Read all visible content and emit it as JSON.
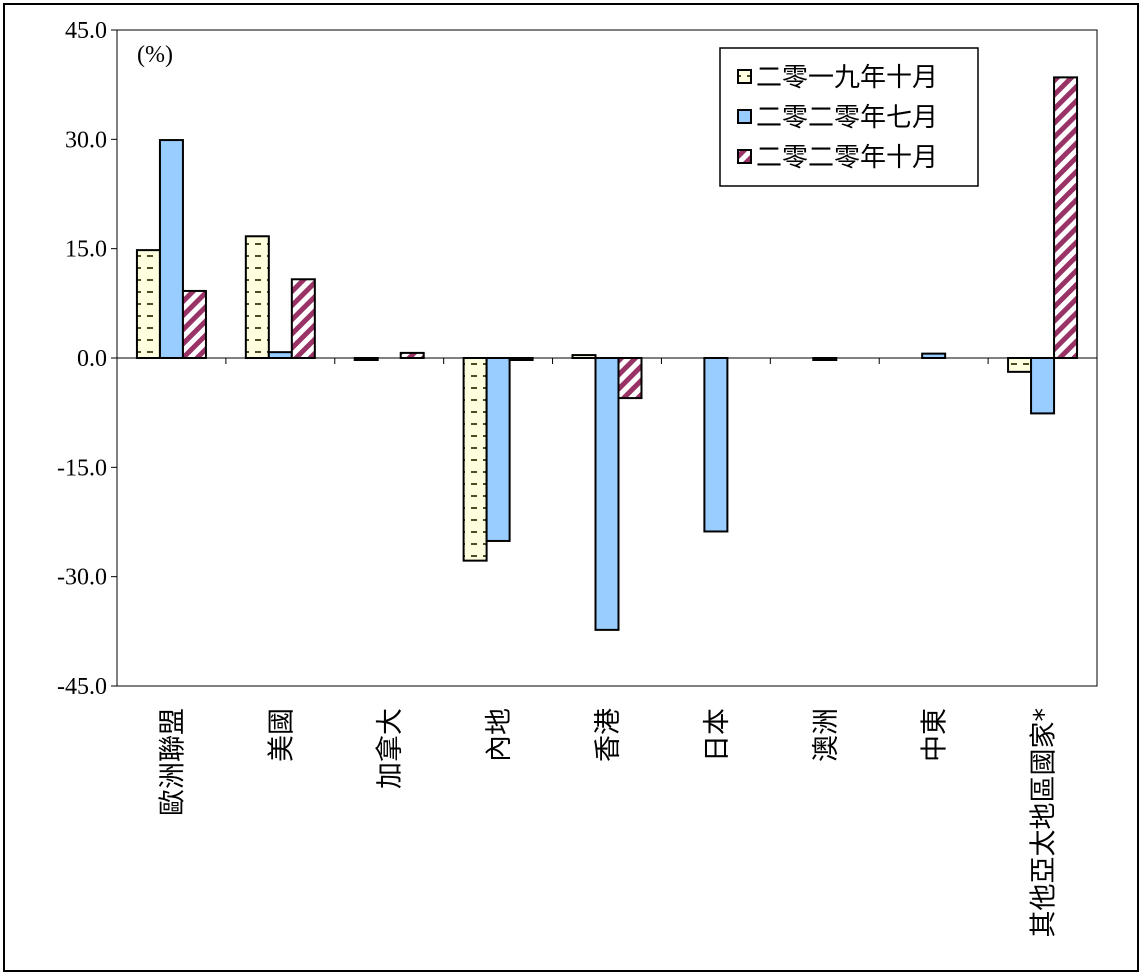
{
  "chart_data": {
    "type": "bar",
    "unit_label": "(%)",
    "categories": [
      "歐洲聯盟",
      "美國",
      "加拿大",
      "內地",
      "香港",
      "日本",
      "澳洲",
      "中東",
      "其他亞太地區國家*"
    ],
    "series": [
      {
        "name": "二零一九年十月",
        "values": [
          14.8,
          16.7,
          -0.1,
          -27.8,
          0.4,
          0.0,
          0.0,
          0.0,
          -1.9
        ],
        "color": "#FFFFE0",
        "pattern": "dashes-olive"
      },
      {
        "name": "二零二零年七月",
        "values": [
          29.9,
          0.8,
          0.0,
          -25.1,
          -37.3,
          -23.8,
          -0.1,
          0.6,
          -7.6
        ],
        "color": "#99CCFF",
        "pattern": "solid"
      },
      {
        "name": "二零二零年十月",
        "values": [
          9.2,
          10.8,
          0.7,
          -0.2,
          -5.5,
          0.0,
          0.0,
          0.0,
          38.5
        ],
        "color": "#993366",
        "pattern": "diagonal-stripes"
      }
    ],
    "yticks": [
      "45.0",
      "30.0",
      "15.0",
      "0.0",
      "-15.0",
      "-30.0",
      "-45.0"
    ],
    "ylim": [
      -45,
      45
    ],
    "legend_position": "top-right",
    "grid": false
  }
}
